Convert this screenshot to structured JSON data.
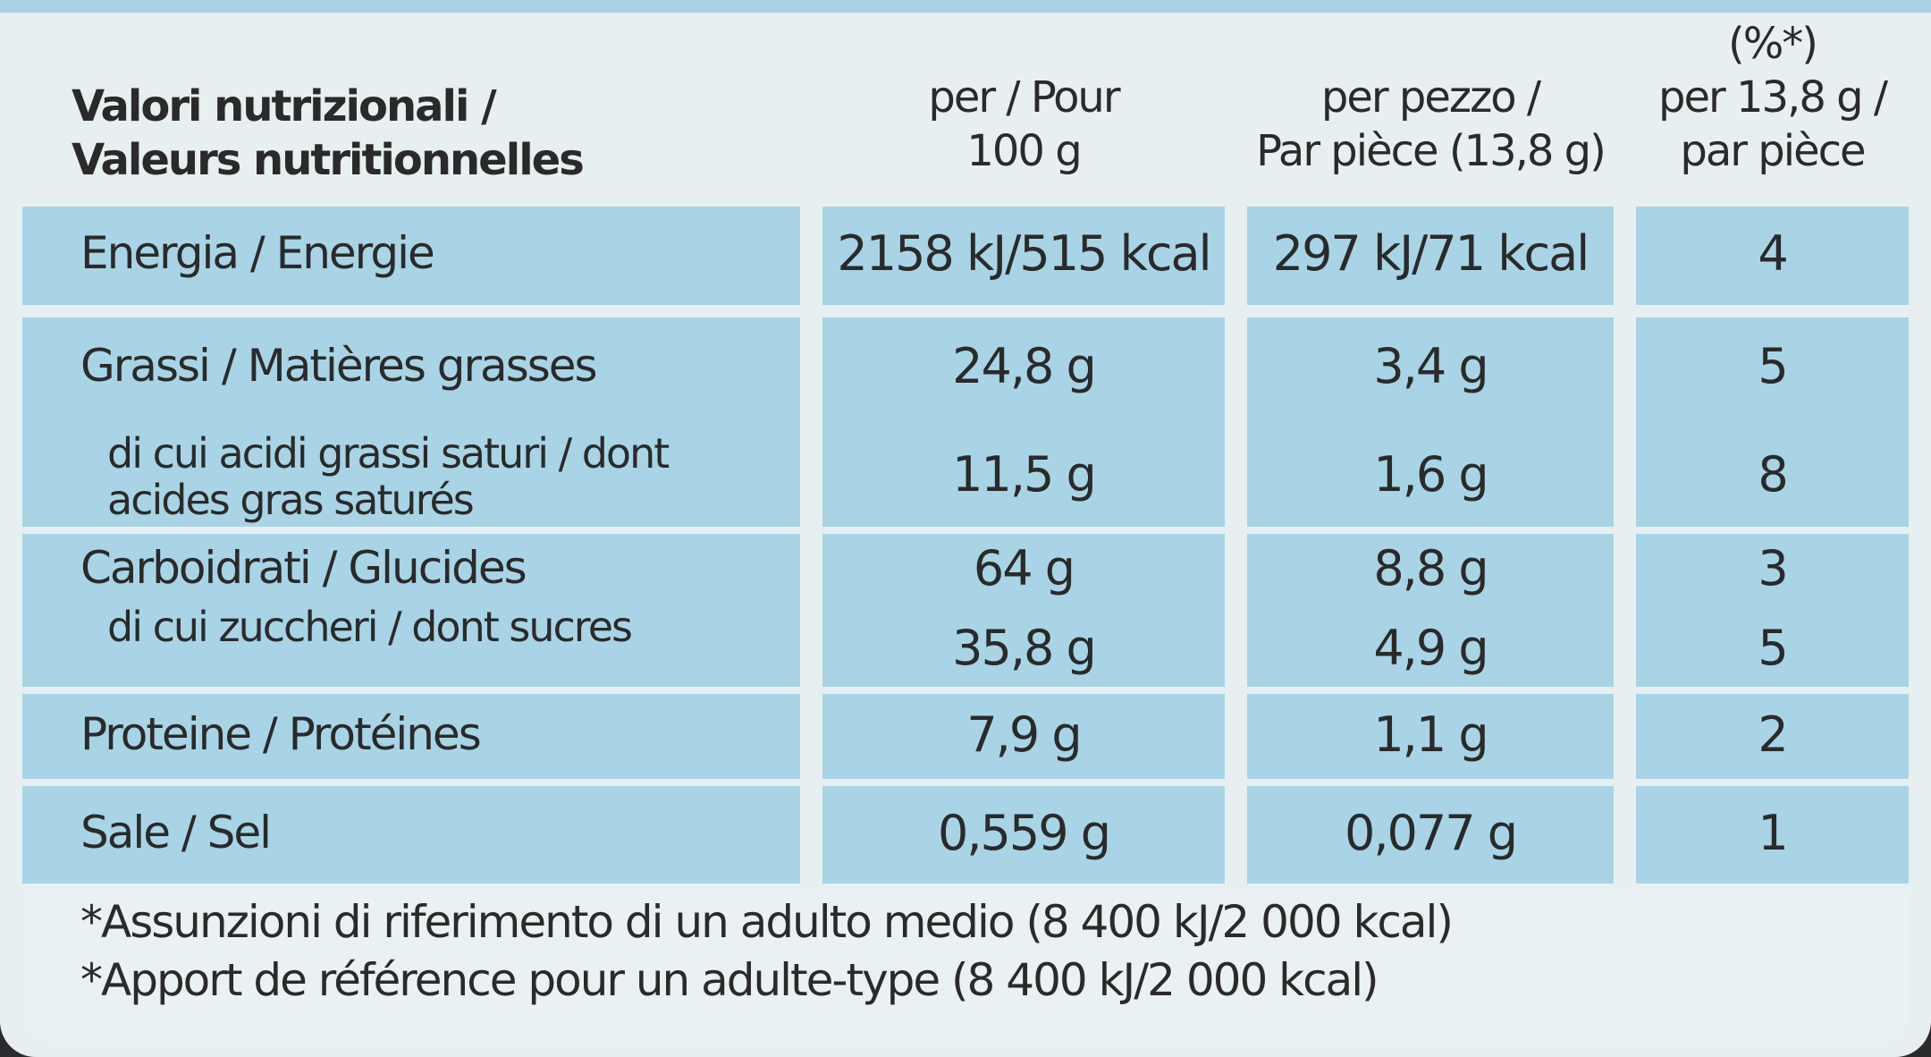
{
  "header": {
    "nutrient": [
      "Valori nutrizionali /",
      "Valeurs nutritionnelles"
    ],
    "per_100g": [
      "per / Pour",
      "100 g"
    ],
    "per_piece": [
      "per pezzo /",
      "Par pièce (13,8 g)"
    ],
    "ri_percent": [
      "(%*)",
      "per 13,8 g /",
      "par pièce"
    ]
  },
  "groups": [
    {
      "items": [
        {
          "label": "Energia / Energie",
          "per_100g": "2158 kJ/515 kcal",
          "per_piece": "297 kJ/71 kcal",
          "ri_percent": "4"
        }
      ]
    },
    {
      "items": [
        {
          "label": "Grassi / Matières grasses",
          "per_100g": "24,8 g",
          "per_piece": "3,4 g",
          "ri_percent": "5"
        },
        {
          "label": "di cui acidi grassi saturi / dont acides gras saturés",
          "per_100g": "11,5 g",
          "per_piece": "1,6 g",
          "ri_percent": "8"
        }
      ]
    },
    {
      "items": [
        {
          "label": "Carboidrati / Glucides",
          "per_100g": "64 g",
          "per_piece": "8,8 g",
          "ri_percent": "3"
        },
        {
          "label": "di cui zuccheri / dont sucres",
          "per_100g": "35,8 g",
          "per_piece": "4,9 g",
          "ri_percent": "5"
        }
      ]
    },
    {
      "items": [
        {
          "label": "Proteine / Protéines",
          "per_100g": "7,9 g",
          "per_piece": "1,1 g",
          "ri_percent": "2"
        }
      ]
    },
    {
      "items": [
        {
          "label": "Sale / Sel",
          "per_100g": "0,559 g",
          "per_piece": "0,077 g",
          "ri_percent": "1"
        }
      ]
    }
  ],
  "footnotes": [
    "*Assunzioni di riferimento di un adulto medio (8 400 kJ/2 000 kcal)",
    "*Apport de référence pour un adulte-type (8 400 kJ/2 000 kcal)"
  ]
}
